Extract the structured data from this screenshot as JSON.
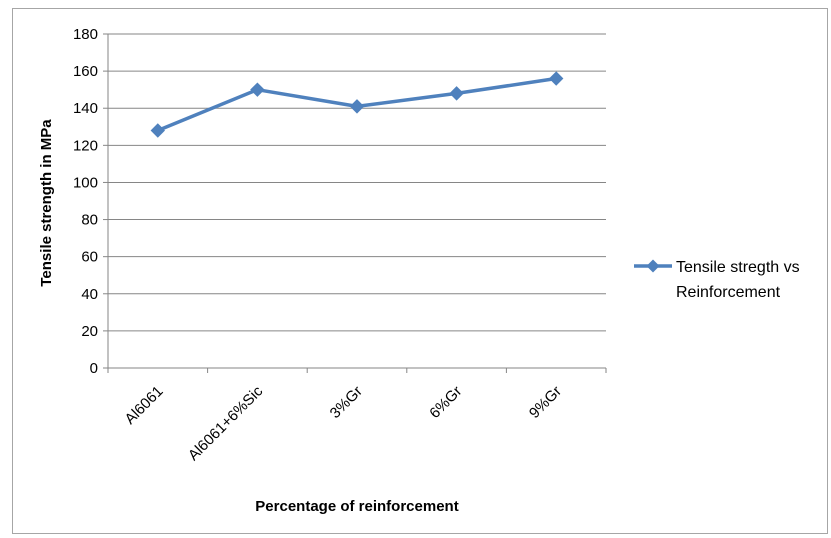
{
  "chart_data": {
    "type": "line",
    "categories": [
      "Al6061",
      "Al6061+6%Sic",
      "3%Gr",
      "6%Gr",
      "9%Gr"
    ],
    "series": [
      {
        "name": "Tensile stregth vs Reinforcement",
        "name_lines": [
          "Tensile stregth vs",
          "Reinforcement"
        ],
        "values": [
          128,
          150,
          141,
          148,
          156
        ],
        "color": "#4f81bd",
        "marker": "diamond"
      }
    ],
    "title": "",
    "xlabel": "Percentage of reinforcement",
    "ylabel": "Tensile strength in MPa",
    "ylim": [
      0,
      180
    ],
    "yticks": [
      0,
      20,
      40,
      60,
      80,
      100,
      120,
      140,
      160,
      180
    ],
    "grid": true,
    "legend": "right"
  }
}
